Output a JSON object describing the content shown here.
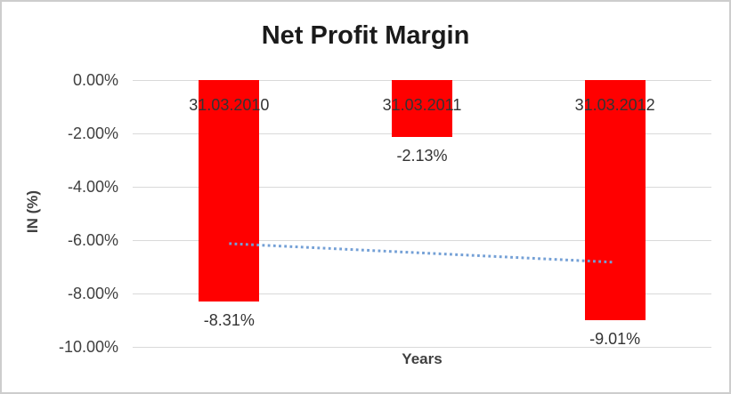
{
  "chart_data": {
    "type": "bar",
    "title": "Net Profit Margin",
    "xlabel": "Years",
    "ylabel": "IN (%)",
    "categories": [
      "31.03.2010",
      "31.03.2011",
      "31.03.2012"
    ],
    "values": [
      -8.31,
      -2.13,
      -9.01
    ],
    "value_labels": [
      "-8.31%",
      "-2.13%",
      "-9.01%"
    ],
    "ylim": [
      -10,
      0
    ],
    "ytick_step": 2,
    "ytick_labels": [
      "0.00%",
      "-2.00%",
      "-4.00%",
      "-6.00%",
      "-8.00%",
      "-10.00%"
    ],
    "grid": true,
    "legend_position": "none",
    "bar_color": "#ff0000",
    "gridline_color": "#d9d9d9",
    "text_color": "#404040",
    "title_color": "#1a1a1a",
    "trendline": {
      "type": "linear",
      "style": "dotted",
      "color": "#74a0d6",
      "start_value": -6.13,
      "end_value": -6.83
    }
  }
}
